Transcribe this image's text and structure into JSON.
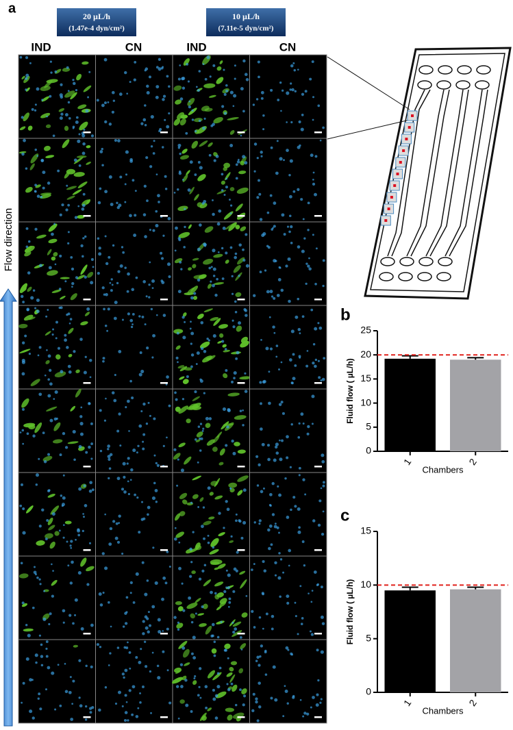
{
  "panel_a": {
    "label": "a",
    "headers": [
      {
        "rate": "20 µL/h",
        "stress": "(1.47e-4 dyn/cm²)"
      },
      {
        "rate": "10 µL/h",
        "stress": "(7.11e-5 dyn/cm²)"
      }
    ],
    "columns": [
      "IND",
      "CN",
      "IND",
      "CN"
    ],
    "flow_label": "Flow direction"
  },
  "chart_data": [
    {
      "type": "bar",
      "panel_label": "b",
      "ylabel": "Fluid flow ( µL/h)",
      "xlabel": "Chambers",
      "categories": [
        "1",
        "2"
      ],
      "values": [
        19.2,
        19.0
      ],
      "errors": [
        0.6,
        0.4
      ],
      "colors": [
        "#000000",
        "#a3a3a7"
      ],
      "ylim": [
        0,
        25
      ],
      "yticks": [
        0,
        5,
        10,
        15,
        20,
        25
      ],
      "reference_line": 20,
      "reference_color": "#e0201b"
    },
    {
      "type": "bar",
      "panel_label": "c",
      "ylabel": "Fluid flow ( µL/h)",
      "xlabel": "Chambers",
      "categories": [
        "1",
        "2"
      ],
      "values": [
        9.5,
        9.6
      ],
      "errors": [
        0.3,
        0.2
      ],
      "colors": [
        "#000000",
        "#a3a3a7"
      ],
      "ylim": [
        0,
        15
      ],
      "yticks": [
        0,
        5,
        10,
        15
      ],
      "reference_line": 10,
      "reference_color": "#e0201b"
    }
  ]
}
